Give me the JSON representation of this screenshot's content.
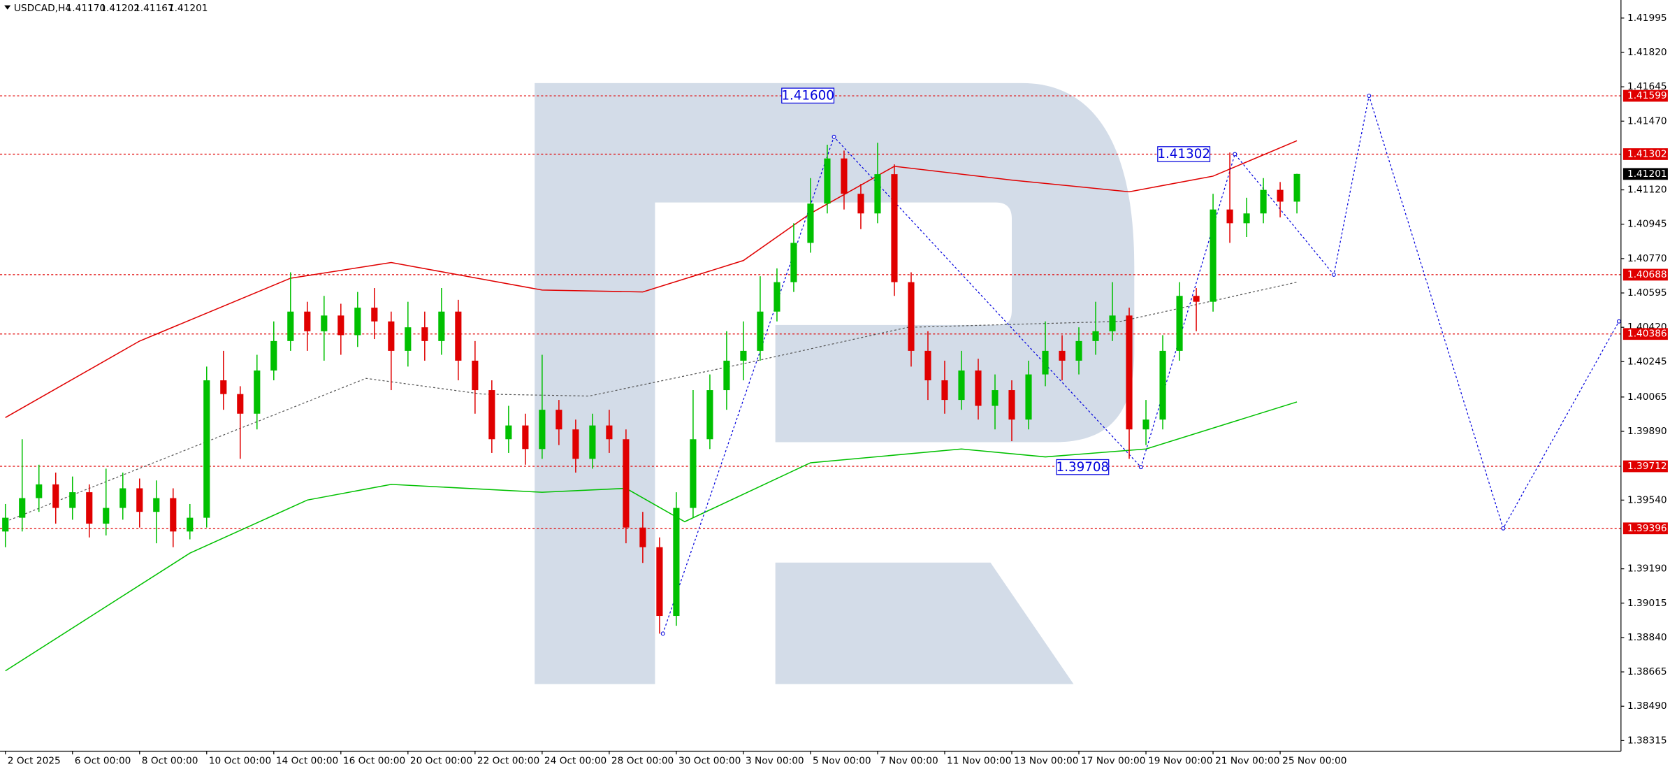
{
  "header": {
    "symbol": "USDCAD,H4",
    "quote": [
      "1.41170",
      "1.41202",
      "1.41167",
      "1.41201"
    ]
  },
  "chart_data": {
    "type": "candlestick",
    "up_color": "#00c000",
    "down_color": "#e00000",
    "xlim": [
      -0.32,
      96.32
    ],
    "ylim": [
      1.38261,
      1.42087
    ],
    "yticks": [
      1.41995,
      {
        "value": 1.4182,
        "label": "1.41820"
      },
      1.41645,
      {
        "value": 1.4147,
        "label": "1.41470"
      },
      {
        "value": 1.4112,
        "label": "1.41120"
      },
      1.40945,
      {
        "value": 1.4077,
        "label": "1.40770"
      },
      1.40595,
      {
        "value": 1.4042,
        "label": "1.40420"
      },
      1.40245,
      1.40065,
      {
        "value": 1.3989,
        "label": "1.39890"
      },
      {
        "value": 1.3954,
        "label": "1.39540"
      },
      {
        "value": 1.3919,
        "label": "1.39190"
      },
      1.39015,
      {
        "value": 1.3884,
        "label": "1.38840"
      },
      1.38665,
      {
        "value": 1.3849,
        "label": "1.38490"
      },
      1.38315
    ],
    "xticks": [
      {
        "value": 0,
        "label": "2 Oct 2025"
      },
      {
        "value": 4,
        "label": "6 Oct 00:00"
      },
      {
        "value": 8,
        "label": "8 Oct 00:00"
      },
      {
        "value": 12,
        "label": "10 Oct 00:00"
      },
      {
        "value": 16,
        "label": "14 Oct 00:00"
      },
      {
        "value": 20,
        "label": "16 Oct 00:00"
      },
      {
        "value": 24,
        "label": "20 Oct 00:00"
      },
      {
        "value": 28,
        "label": "22 Oct 00:00"
      },
      {
        "value": 32,
        "label": "24 Oct 00:00"
      },
      {
        "value": 36,
        "label": "28 Oct 00:00"
      },
      {
        "value": 40,
        "label": "30 Oct 00:00"
      },
      {
        "value": 44,
        "label": "3 Nov 00:00"
      },
      {
        "value": 48,
        "label": "5 Nov 00:00"
      },
      {
        "value": 52,
        "label": "7 Nov 00:00"
      },
      {
        "value": 56,
        "label": "11 Nov 00:00"
      },
      {
        "value": 60,
        "label": "13 Nov 00:00"
      },
      {
        "value": 64,
        "label": "17 Nov 00:00"
      },
      {
        "value": 68,
        "label": "19 Nov 00:00"
      },
      {
        "value": 72,
        "label": "21 Nov 00:00"
      },
      {
        "value": 76,
        "label": "25 Nov 00:00"
      }
    ],
    "series": [
      {
        "name": "USDCAD,H4",
        "open": [
          1.3938,
          1.3945,
          1.3955,
          1.3962,
          1.395,
          1.3958,
          1.3942,
          1.395,
          1.396,
          1.3948,
          1.3955,
          1.3938,
          1.3945,
          1.4015,
          1.4008,
          1.3998,
          1.402,
          1.4035,
          1.405,
          1.404,
          1.4048,
          1.4038,
          1.4052,
          1.4045,
          1.403,
          1.4042,
          1.4035,
          1.405,
          1.4025,
          1.401,
          1.3985,
          1.3992,
          1.398,
          1.4,
          1.399,
          1.3975,
          1.3992,
          1.3985,
          1.394,
          1.393,
          1.3895,
          1.395,
          1.3985,
          1.401,
          1.4025,
          1.403,
          1.405,
          1.4065,
          1.4085,
          1.4105,
          1.4128,
          1.411,
          1.41,
          1.412,
          1.4065,
          1.403,
          1.4015,
          1.4005,
          1.402,
          1.4002,
          1.401,
          1.3995,
          1.4018,
          1.403,
          1.4025,
          1.4035,
          1.404,
          1.4048,
          1.399,
          1.3995,
          1.403,
          1.4058,
          1.4055,
          1.4102,
          1.4095,
          1.41,
          1.4112,
          1.4106
        ],
        "high": [
          1.3952,
          1.3985,
          1.3972,
          1.3968,
          1.3966,
          1.3962,
          1.397,
          1.3968,
          1.3965,
          1.3964,
          1.396,
          1.3952,
          1.4022,
          1.403,
          1.4012,
          1.4028,
          1.4045,
          1.407,
          1.4055,
          1.4058,
          1.4054,
          1.406,
          1.4062,
          1.405,
          1.4055,
          1.405,
          1.4062,
          1.4056,
          1.4035,
          1.4015,
          1.4002,
          1.3998,
          1.4028,
          1.4005,
          1.3995,
          1.3998,
          1.4,
          1.399,
          1.3948,
          1.3935,
          1.3958,
          1.401,
          1.4018,
          1.404,
          1.4045,
          1.4068,
          1.4072,
          1.4095,
          1.4118,
          1.4135,
          1.4132,
          1.4115,
          1.4136,
          1.4125,
          1.407,
          1.404,
          1.4025,
          1.403,
          1.4026,
          1.4018,
          1.4015,
          1.4025,
          1.4045,
          1.4038,
          1.4042,
          1.4055,
          1.4065,
          1.4052,
          1.4005,
          1.4038,
          1.4065,
          1.4062,
          1.411,
          1.4131,
          1.4108,
          1.4118,
          1.4116,
          1.41202
        ],
        "low": [
          1.393,
          1.3938,
          1.3948,
          1.3942,
          1.3944,
          1.3935,
          1.3936,
          1.3944,
          1.394,
          1.3932,
          1.393,
          1.3934,
          1.394,
          1.4,
          1.3975,
          1.399,
          1.4015,
          1.403,
          1.403,
          1.4025,
          1.4028,
          1.4032,
          1.4036,
          1.401,
          1.4022,
          1.4025,
          1.4028,
          1.4015,
          1.3998,
          1.3978,
          1.3978,
          1.3972,
          1.3975,
          1.3982,
          1.3968,
          1.397,
          1.3978,
          1.3932,
          1.3922,
          1.3886,
          1.389,
          1.3945,
          1.398,
          1.4,
          1.4015,
          1.4025,
          1.4045,
          1.406,
          1.408,
          1.41,
          1.4102,
          1.4092,
          1.4095,
          1.4058,
          1.4022,
          1.4005,
          1.3998,
          1.4,
          1.3995,
          1.399,
          1.3984,
          1.399,
          1.4012,
          1.4015,
          1.4018,
          1.4028,
          1.4035,
          1.3975,
          1.3982,
          1.399,
          1.4025,
          1.404,
          1.405,
          1.4085,
          1.4088,
          1.4095,
          1.4098,
          1.41
        ],
        "close": [
          1.3945,
          1.3955,
          1.3962,
          1.395,
          1.3958,
          1.3942,
          1.395,
          1.396,
          1.3948,
          1.3955,
          1.3938,
          1.3945,
          1.4015,
          1.4008,
          1.3998,
          1.402,
          1.4035,
          1.405,
          1.404,
          1.4048,
          1.4038,
          1.4052,
          1.4045,
          1.403,
          1.4042,
          1.4035,
          1.405,
          1.4025,
          1.401,
          1.3985,
          1.3992,
          1.398,
          1.4,
          1.399,
          1.3975,
          1.3992,
          1.3985,
          1.394,
          1.393,
          1.3895,
          1.395,
          1.3985,
          1.401,
          1.4025,
          1.403,
          1.405,
          1.4065,
          1.4085,
          1.4105,
          1.4128,
          1.411,
          1.41,
          1.412,
          1.4065,
          1.403,
          1.4015,
          1.4005,
          1.402,
          1.4002,
          1.401,
          1.3995,
          1.4018,
          1.403,
          1.4025,
          1.4035,
          1.404,
          1.4048,
          1.399,
          1.3995,
          1.403,
          1.4058,
          1.4055,
          1.4102,
          1.4095,
          1.41,
          1.4112,
          1.4106,
          1.41201
        ]
      }
    ],
    "overlays": [
      {
        "color": "#e00000",
        "dash": false,
        "x": [
          0,
          8,
          17,
          23,
          32,
          38,
          44,
          48,
          53,
          60,
          67,
          72,
          77
        ],
        "values": [
          1.3996,
          1.4035,
          1.4067,
          1.4075,
          1.4061,
          1.406,
          1.4076,
          1.41,
          1.4124,
          1.4117,
          1.4111,
          1.4119,
          1.4137
        ]
      },
      {
        "color": "#00c000",
        "dash": false,
        "x": [
          0,
          11,
          18,
          23,
          32,
          37,
          40.5,
          48,
          57,
          62,
          68,
          77
        ],
        "values": [
          1.3867,
          1.3927,
          1.3954,
          1.3962,
          1.3958,
          1.396,
          1.3943,
          1.3973,
          1.398,
          1.3976,
          1.398,
          1.4004
        ]
      },
      {
        "color": "#555555",
        "dash": true,
        "x": [
          0,
          21.5,
          28.4,
          34.8,
          44.3,
          53.8,
          66.5,
          77
        ],
        "values": [
          1.3943,
          1.4016,
          1.4008,
          1.4007,
          1.4024,
          1.4042,
          1.4045,
          1.4065
        ]
      },
      {
        "color": "#0000dd",
        "dash": true,
        "x": [
          39.2,
          49.4,
          67.7,
          73.3,
          79.2,
          81.3,
          89.3,
          96.2
        ],
        "values": [
          1.3886,
          1.4139,
          1.39708,
          1.41302,
          1.40688,
          1.41599,
          1.39396,
          1.4045
        ]
      }
    ],
    "levels": [
      1.41599,
      1.41302,
      1.40688,
      1.40386,
      1.39712,
      1.39396
    ],
    "level_color": "#e00000",
    "last_price": 1.41201,
    "annotations": [
      {
        "value": 1.416,
        "label": "1.41600"
      },
      {
        "value": 1.41302,
        "label": "1.41302"
      },
      {
        "value": 1.39708,
        "label": "1.39708"
      }
    ]
  }
}
